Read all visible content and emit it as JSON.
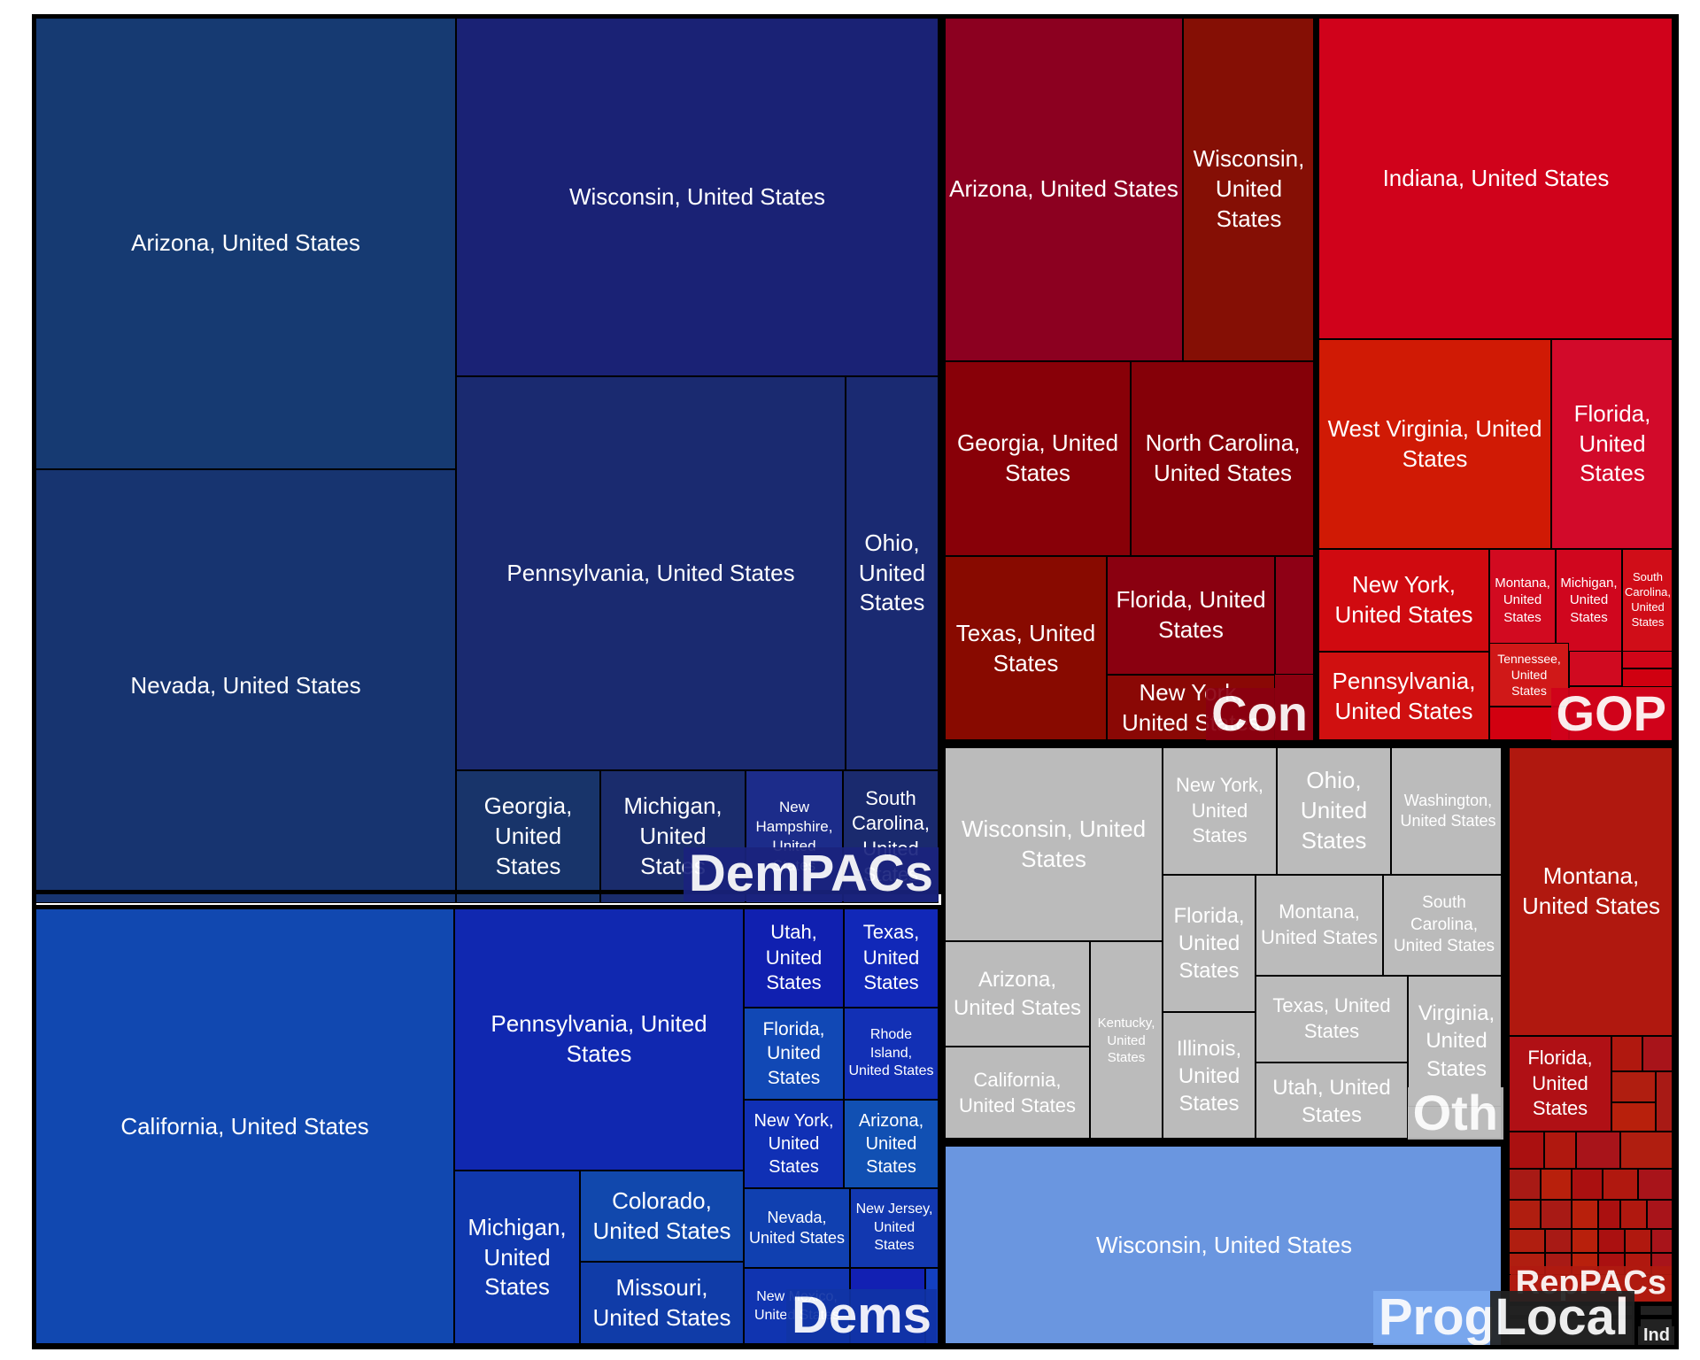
{
  "chart_data": {
    "type": "treemap",
    "groups": [
      {
        "name": "DemPACs",
        "color": "#1a237e",
        "tiles": [
          {
            "label": "Arizona, United States",
            "color": "#163a72"
          },
          {
            "label": "Nevada, United States",
            "color": "#173470"
          },
          {
            "label": "Wisconsin, United States",
            "color": "#1a2275"
          },
          {
            "label": "Pennsylvania, United States",
            "color": "#1a2a70"
          },
          {
            "label": "Ohio, United States",
            "color": "#1a2a72"
          },
          {
            "label": "Georgia, United States",
            "color": "#18346a"
          },
          {
            "label": "Michigan, United States",
            "color": "#1a2c6c"
          },
          {
            "label": "New Hampshire, United States",
            "color": "#1c2c8a"
          },
          {
            "label": "South Carolina, United States",
            "color": "#1a2a6e"
          }
        ]
      },
      {
        "name": "Dems",
        "color": "#1034a6",
        "tiles": [
          {
            "label": "California, United States",
            "color": "#1148b0"
          },
          {
            "label": "Pennsylvania, United States",
            "color": "#1028b0"
          },
          {
            "label": "Michigan, United States",
            "color": "#1038ae"
          },
          {
            "label": "Colorado, United States",
            "color": "#1148ad"
          },
          {
            "label": "Missouri, United States",
            "color": "#103ca8"
          },
          {
            "label": "Utah, United States",
            "color": "#1020b0"
          },
          {
            "label": "Texas, United States",
            "color": "#1128b8"
          },
          {
            "label": "Florida, United States",
            "color": "#1148b5"
          },
          {
            "label": "Rhode Island, United States",
            "color": "#1230b5"
          },
          {
            "label": "New York, United States",
            "color": "#1030b5"
          },
          {
            "label": "Arizona, United States",
            "color": "#1150b3"
          },
          {
            "label": "Nevada, United States",
            "color": "#1040b0"
          },
          {
            "label": "New Jersey, United States",
            "color": "#1238b0"
          },
          {
            "label": "New Mexico, United States",
            "color": "#1034b0"
          }
        ]
      },
      {
        "name": "Con",
        "color": "#8b0010",
        "tiles": [
          {
            "label": "Arizona, United States",
            "color": "#8c0020"
          },
          {
            "label": "Wisconsin, United States",
            "color": "#850f05"
          },
          {
            "label": "Georgia, United States",
            "color": "#880008"
          },
          {
            "label": "North Carolina, United States",
            "color": "#850008"
          },
          {
            "label": "Texas, United States",
            "color": "#880a00"
          },
          {
            "label": "Florida, United States",
            "color": "#8a0010"
          },
          {
            "label": "New York, United States",
            "color": "#8a0805"
          }
        ]
      },
      {
        "name": "GOP",
        "color": "#d0021b",
        "tiles": [
          {
            "label": "Indiana, United States",
            "color": "#d0021b"
          },
          {
            "label": "West Virginia, United States",
            "color": "#d01a05"
          },
          {
            "label": "Florida, United States",
            "color": "#d20a2a"
          },
          {
            "label": "New York, United States",
            "color": "#d00a10"
          },
          {
            "label": "Montana, United States",
            "color": "#d20a20"
          },
          {
            "label": "Michigan, United States",
            "color": "#d0061e"
          },
          {
            "label": "South Carolina, United States",
            "color": "#d00d18"
          },
          {
            "label": "Pennsylvania, United States",
            "color": "#d01010"
          },
          {
            "label": "Tennessee, United States",
            "color": "#d01818"
          }
        ]
      },
      {
        "name": "Oth",
        "color": "#bcbcbc",
        "tiles": [
          {
            "label": "Wisconsin, United States",
            "color": "#bbbbbb"
          },
          {
            "label": "New York, United States",
            "color": "#bbbbbb"
          },
          {
            "label": "Ohio, United States",
            "color": "#bbbbbb"
          },
          {
            "label": "Washington, United States",
            "color": "#bbbbbb"
          },
          {
            "label": "Arizona, United States",
            "color": "#bbbbbb"
          },
          {
            "label": "Kentucky, United States",
            "color": "#bbbbbb"
          },
          {
            "label": "Florida, United States",
            "color": "#bbbbbb"
          },
          {
            "label": "Montana, United States",
            "color": "#bbbbbb"
          },
          {
            "label": "South Carolina, United States",
            "color": "#bbbbbb"
          },
          {
            "label": "Texas, United States",
            "color": "#bbbbbb"
          },
          {
            "label": "Virginia, United States",
            "color": "#bbbbbb"
          },
          {
            "label": "California, United States",
            "color": "#bbbbbb"
          },
          {
            "label": "Illinois, United States",
            "color": "#bbbbbb"
          },
          {
            "label": "Utah, United States",
            "color": "#bbbbbb"
          }
        ]
      },
      {
        "name": "Prog",
        "color": "#6a96e0",
        "tiles": [
          {
            "label": "Wisconsin, United States",
            "color": "#6a96e0"
          }
        ]
      },
      {
        "name": "RepPACs",
        "color": "#b01a10",
        "tiles": [
          {
            "label": "Montana, United States",
            "color": "#b0180f"
          },
          {
            "label": "Florida, United States",
            "color": "#b01015"
          }
        ]
      },
      {
        "name": "Local",
        "color": "#222222",
        "tiles": []
      },
      {
        "name": "Ind",
        "color": "#222222",
        "tiles": []
      }
    ]
  }
}
